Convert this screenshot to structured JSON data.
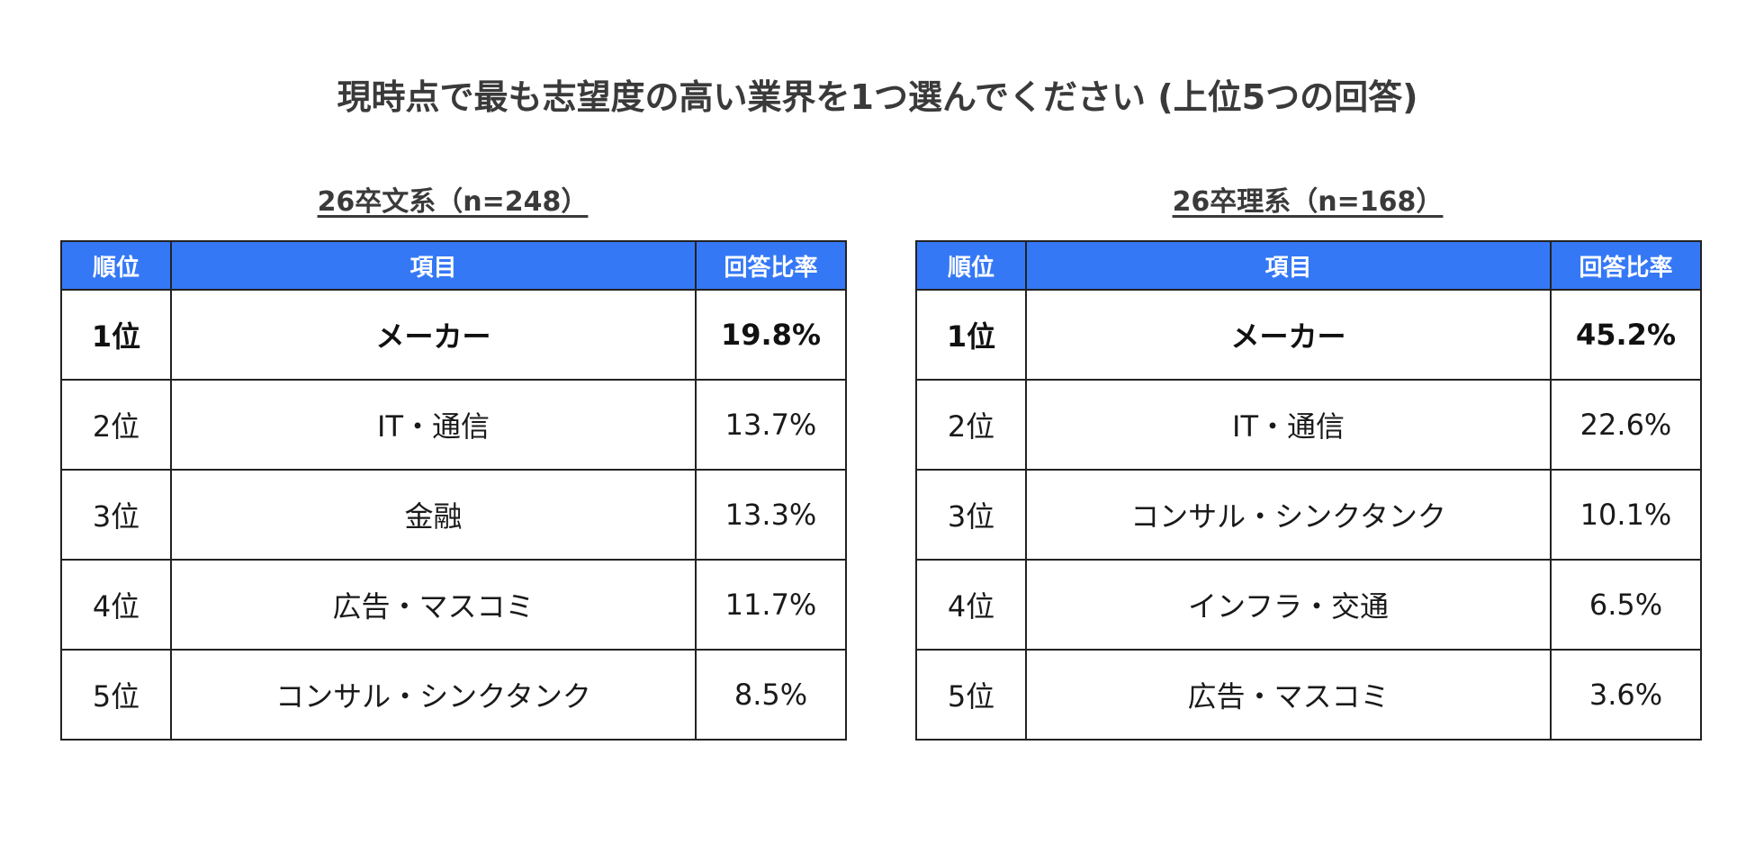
{
  "title": "現時点で最も志望度の高い業界を1つ選んでください (上位5つの回答)",
  "headers": {
    "rank": "順位",
    "item": "項目",
    "rate": "回答比率"
  },
  "panels": [
    {
      "title": "26卒文系（n=248）",
      "rows": [
        {
          "rank": "1位",
          "item": "メーカー",
          "rate": "19.8%"
        },
        {
          "rank": "2位",
          "item": "IT・通信",
          "rate": "13.7%"
        },
        {
          "rank": "3位",
          "item": "金融",
          "rate": "13.3%"
        },
        {
          "rank": "4位",
          "item": "広告・マスコミ",
          "rate": "11.7%"
        },
        {
          "rank": "5位",
          "item": "コンサル・シンクタンク",
          "rate": "8.5%"
        }
      ]
    },
    {
      "title": "26卒理系（n=168）",
      "rows": [
        {
          "rank": "1位",
          "item": "メーカー",
          "rate": "45.2%"
        },
        {
          "rank": "2位",
          "item": "IT・通信",
          "rate": "22.6%"
        },
        {
          "rank": "3位",
          "item": "コンサル・シンクタンク",
          "rate": "10.1%"
        },
        {
          "rank": "4位",
          "item": "インフラ・交通",
          "rate": "6.5%"
        },
        {
          "rank": "5位",
          "item": "広告・マスコミ",
          "rate": "3.6%"
        }
      ]
    }
  ],
  "colors": {
    "header_bg": "#3578f6",
    "header_text": "#ffffff",
    "border": "#222222"
  }
}
